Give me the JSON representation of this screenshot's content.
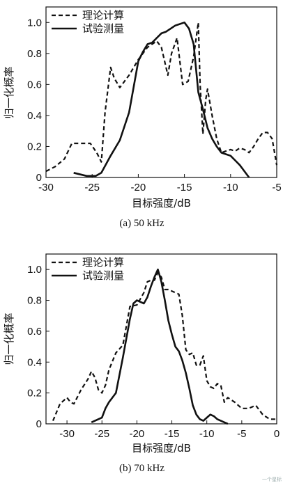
{
  "chart_data": [
    {
      "type": "line",
      "caption": "(a) 50 kHz",
      "xlabel": "目标强度/dB",
      "ylabel": "归一化概率",
      "xlim": [
        -30,
        -5
      ],
      "ylim": [
        0,
        1.1
      ],
      "xticks": [
        -30,
        -25,
        -20,
        -15,
        -10,
        -5
      ],
      "xtick_labels": [
        "-30",
        "-25",
        "-20",
        "-15",
        "-10",
        "-5"
      ],
      "yticks": [
        0,
        0.2,
        0.4,
        0.6,
        0.8,
        1.0
      ],
      "ytick_labels": [
        "0",
        "0.2",
        "0.4",
        "0.6",
        "0.8",
        "1.0"
      ],
      "legend_position": "top-left",
      "series": [
        {
          "name": "理论计算",
          "style": "dashed",
          "x": [
            -30,
            -29,
            -28,
            -27.2,
            -26,
            -25.2,
            -24.5,
            -24,
            -23.6,
            -23,
            -22.6,
            -22,
            -21,
            -20,
            -19,
            -18.5,
            -18,
            -17.5,
            -16.8,
            -16.4,
            -15.8,
            -15.2,
            -14.6,
            -14,
            -13.5,
            -13.3,
            -13,
            -12.7,
            -12.5,
            -12,
            -11.5,
            -11,
            -10.5,
            -10,
            -9.5,
            -9,
            -8.5,
            -8,
            -7.5,
            -7,
            -6.5,
            -6,
            -5.5,
            -5
          ],
          "y": [
            0.04,
            0.07,
            0.12,
            0.22,
            0.22,
            0.22,
            0.16,
            0.1,
            0.42,
            0.71,
            0.64,
            0.58,
            0.66,
            0.76,
            0.84,
            0.86,
            0.88,
            0.84,
            0.66,
            0.8,
            0.9,
            0.6,
            0.62,
            0.78,
            1.0,
            0.6,
            0.28,
            0.5,
            0.57,
            0.4,
            0.25,
            0.16,
            0.17,
            0.18,
            0.17,
            0.19,
            0.18,
            0.16,
            0.2,
            0.25,
            0.29,
            0.29,
            0.25,
            0.08
          ]
        },
        {
          "name": "试验测量",
          "style": "solid",
          "x": [
            -27,
            -25.6,
            -24.6,
            -24,
            -23,
            -22,
            -21,
            -20,
            -19.5,
            -19,
            -18.5,
            -18,
            -17.5,
            -17,
            -16.5,
            -16,
            -15.5,
            -15,
            -14.5,
            -14,
            -13.5,
            -13,
            -12.5,
            -12,
            -11.5,
            -11,
            -10.5,
            -10,
            -9.5,
            -9,
            -8.5,
            -8
          ],
          "y": [
            0.03,
            0.01,
            0.01,
            0.03,
            0.14,
            0.24,
            0.42,
            0.75,
            0.81,
            0.86,
            0.87,
            0.9,
            0.93,
            0.94,
            0.96,
            0.98,
            0.99,
            1.0,
            0.96,
            0.86,
            0.55,
            0.44,
            0.32,
            0.25,
            0.2,
            0.16,
            0.15,
            0.14,
            0.11,
            0.08,
            0.04,
            0.0
          ]
        }
      ]
    },
    {
      "type": "line",
      "caption": "(b) 70 kHz",
      "xlabel": "目标强度/dB",
      "ylabel": "归一化概率",
      "xlim": [
        -33,
        0
      ],
      "ylim": [
        0,
        1.1
      ],
      "xticks": [
        -30,
        -25,
        -20,
        -15,
        -10,
        -5,
        0
      ],
      "xtick_labels": [
        "-30",
        "-25",
        "-20",
        "-15",
        "-10",
        "-5",
        "0"
      ],
      "yticks": [
        0,
        0.2,
        0.4,
        0.6,
        0.8,
        1.0
      ],
      "ytick_labels": [
        "0",
        "0.2",
        "0.4",
        "0.6",
        "0.8",
        "1.0"
      ],
      "legend_position": "top-left",
      "series": [
        {
          "name": "理论计算",
          "style": "dashed",
          "x": [
            -32,
            -31,
            -30,
            -29.5,
            -29,
            -28,
            -27,
            -26.5,
            -26,
            -25.5,
            -25,
            -24.5,
            -24,
            -23,
            -22,
            -21,
            -20,
            -19,
            -18.5,
            -18,
            -17.5,
            -17,
            -16.5,
            -16,
            -15.5,
            -15,
            -14.5,
            -14,
            -13.5,
            -13,
            -12.5,
            -12,
            -11.5,
            -11,
            -10.5,
            -10,
            -9.5,
            -9,
            -8.5,
            -8,
            -7.5,
            -7,
            -6,
            -5,
            -4,
            -3,
            -2,
            -1,
            0
          ],
          "y": [
            0.02,
            0.13,
            0.17,
            0.14,
            0.13,
            0.22,
            0.29,
            0.34,
            0.3,
            0.22,
            0.2,
            0.25,
            0.35,
            0.46,
            0.51,
            0.76,
            0.77,
            0.85,
            0.92,
            0.93,
            0.93,
            0.98,
            0.95,
            0.87,
            0.87,
            0.86,
            0.85,
            0.84,
            0.7,
            0.48,
            0.45,
            0.46,
            0.38,
            0.38,
            0.44,
            0.28,
            0.24,
            0.23,
            0.26,
            0.25,
            0.14,
            0.17,
            0.14,
            0.1,
            0.1,
            0.12,
            0.06,
            0.03,
            0.03
          ]
        },
        {
          "name": "试验测量",
          "style": "solid",
          "x": [
            -26.5,
            -26,
            -25.5,
            -25,
            -24.5,
            -24,
            -23,
            -22,
            -21,
            -20.5,
            -20,
            -19.5,
            -19,
            -18.5,
            -18,
            -17.5,
            -17,
            -16.5,
            -16,
            -15.5,
            -15,
            -14.5,
            -14,
            -13.5,
            -13,
            -12.5,
            -12,
            -11.5,
            -11,
            -10.5,
            -10,
            -9.5,
            -9,
            -8.5,
            -8,
            -7.5,
            -7
          ],
          "y": [
            0.01,
            0.02,
            0.03,
            0.04,
            0.1,
            0.14,
            0.2,
            0.43,
            0.68,
            0.78,
            0.8,
            0.79,
            0.78,
            0.82,
            0.89,
            0.95,
            1.0,
            0.92,
            0.8,
            0.67,
            0.58,
            0.5,
            0.47,
            0.41,
            0.33,
            0.23,
            0.12,
            0.06,
            0.03,
            0.02,
            0.04,
            0.06,
            0.05,
            0.03,
            0.02,
            0.01,
            0.0
          ]
        }
      ]
    }
  ],
  "watermark": "一个星标"
}
